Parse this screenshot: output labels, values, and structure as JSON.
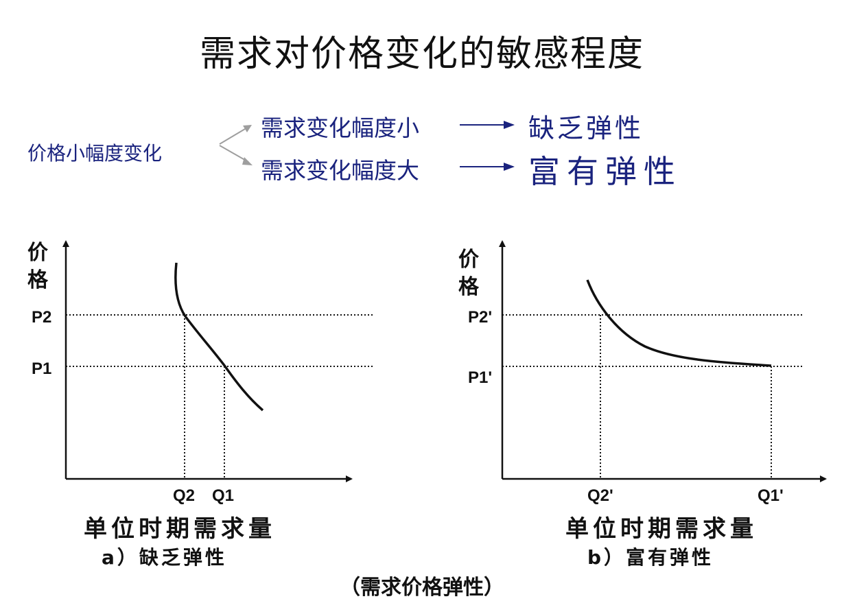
{
  "title": "需求对价格变化的敏感程度",
  "intro": {
    "cause": "价格小幅度变化",
    "branch_small": "需求变化幅度小",
    "branch_large": "需求变化幅度大",
    "result_small": "缺乏弹性",
    "result_large": "富有弹性"
  },
  "left_chart": {
    "y_label_1": "价",
    "y_label_2": "格",
    "p_high": "P2",
    "p_low": "P1",
    "q_low": "Q2",
    "q_high": "Q1",
    "x_label": "单位时期需求量",
    "caption": "a）缺乏弹性"
  },
  "right_chart": {
    "y_label_1": "价",
    "y_label_2": "格",
    "p_high": "P2'",
    "p_low": "P1'",
    "q_low": "Q2'",
    "q_high": "Q1'",
    "x_label": "单位时期需求量",
    "caption": "b）富有弹性"
  },
  "footer": "（需求价格弹性）",
  "colors": {
    "text_blue": "#1a237e",
    "ink": "#111111"
  }
}
